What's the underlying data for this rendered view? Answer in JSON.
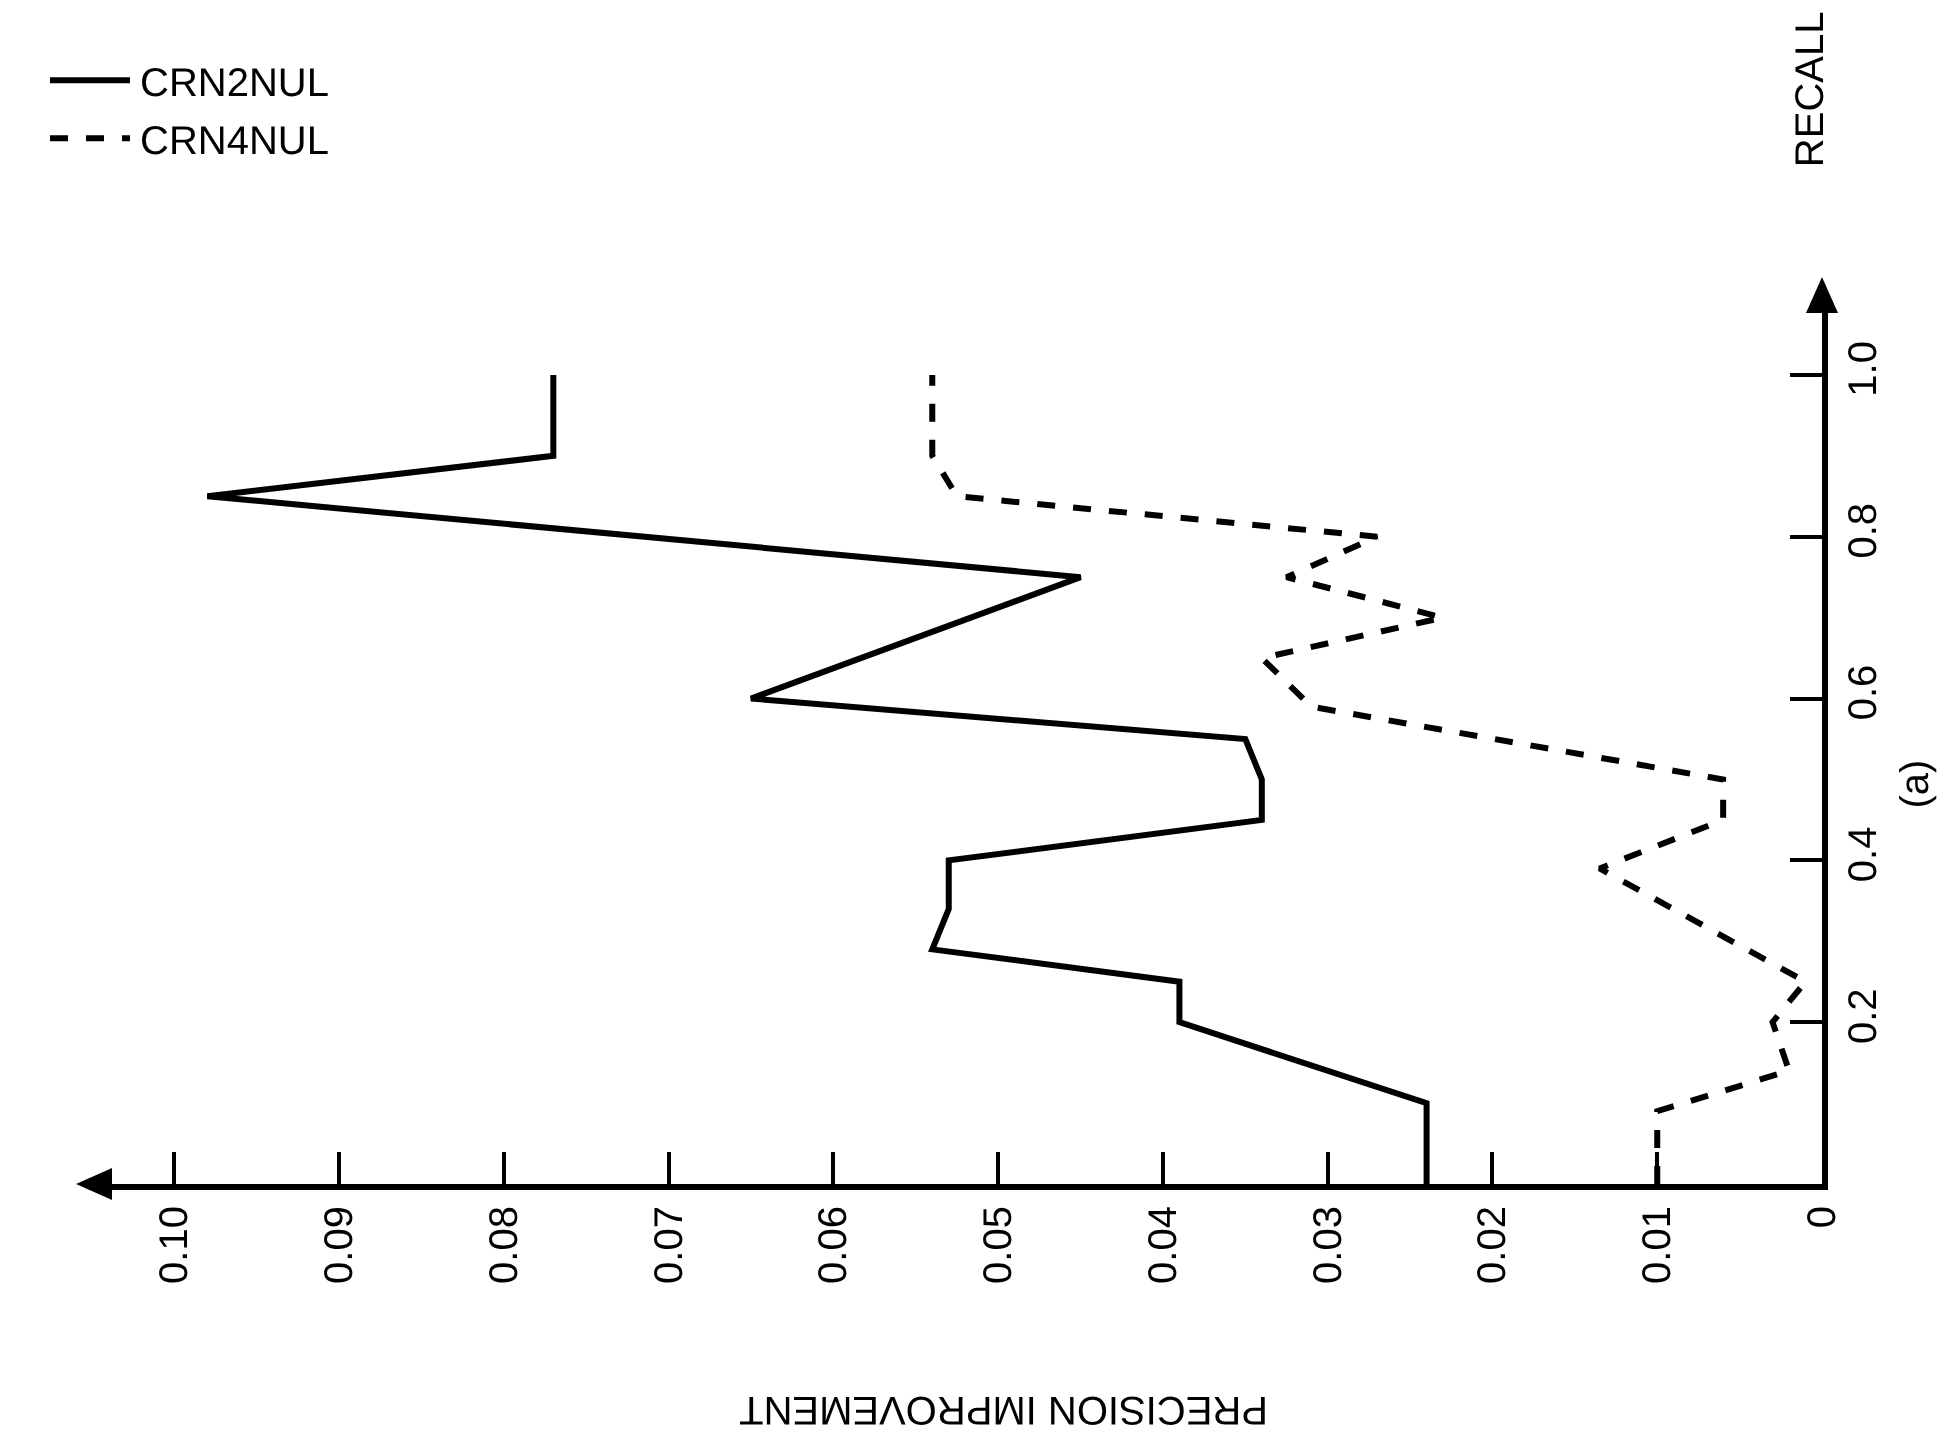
{
  "chart_data": {
    "type": "line",
    "xlabel": "PRECISION IMPROVEMENT",
    "ylabel": "RECALL",
    "xlim": [
      0.105,
      0
    ],
    "xticks": [
      {
        "value": 0.1,
        "label": "0.10"
      },
      0.09,
      0.08,
      0.07,
      0.06,
      0.05,
      0.04,
      0.03,
      0.02,
      0.01,
      0
    ],
    "ylim": [
      0,
      1.1
    ],
    "yticks": [
      0.2,
      0.4,
      0.6,
      0.8,
      {
        "value": 1.0,
        "label": "1.0"
      }
    ],
    "grid": false,
    "legend": "top left",
    "annotations": [
      "(a)"
    ],
    "series": [
      {
        "name": "CRN2NUL",
        "color": "#000000",
        "line_style": "solid",
        "x": [
          0.024,
          0.024,
          0.039,
          0.039,
          0.054,
          0.053,
          0.053,
          0.034,
          0.034,
          0.035,
          0.065,
          0.045,
          0.098,
          0.077,
          0.077
        ],
        "values": [
          0,
          0.1,
          0.2,
          0.25,
          0.29,
          0.34,
          0.4,
          0.45,
          0.5,
          0.55,
          0.6,
          0.75,
          0.85,
          0.9,
          1.0
        ]
      },
      {
        "name": "CRN4NUL",
        "color": "#000000",
        "line_style": "dashed",
        "x": [
          0.01,
          0.01,
          0.002,
          0.003,
          0.001,
          0.0135,
          0.006,
          0.006,
          0.031,
          0.034,
          0.023,
          0.0325,
          0.027,
          0.0525,
          0.054,
          0.054
        ],
        "values": [
          0,
          0.09,
          0.14,
          0.2,
          0.25,
          0.39,
          0.45,
          0.5,
          0.59,
          0.65,
          0.7,
          0.75,
          0.8,
          0.85,
          0.9,
          1.0
        ]
      }
    ]
  }
}
